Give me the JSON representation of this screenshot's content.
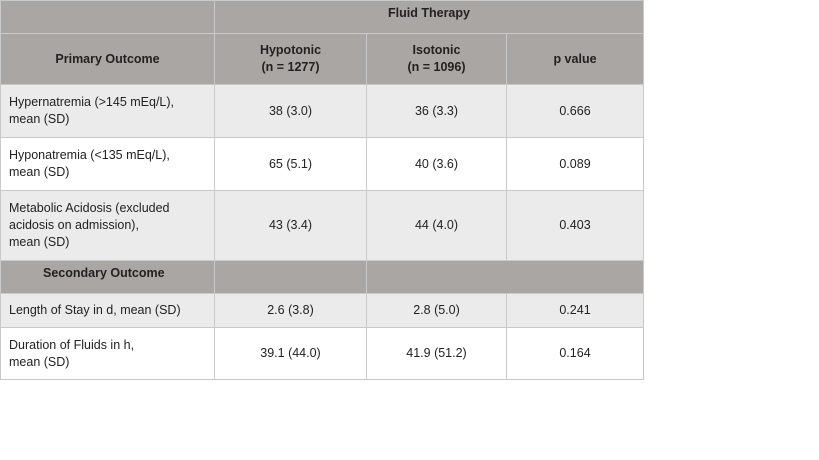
{
  "table": {
    "title": "Fluid Therapy",
    "header": [
      [
        "Primary Outcome"
      ],
      [
        "Hypotonic",
        "(n = 1277)"
      ],
      [
        "Isotonic",
        "(n = 1096)"
      ],
      [
        "p value"
      ]
    ],
    "rows": [
      {
        "label": [
          "Hypernatremia (>145 mEq/L),",
          "mean (SD)"
        ],
        "values": [
          "38 (3.0)",
          "36 (3.3)",
          "0.666"
        ]
      },
      {
        "label": [
          "Hyponatremia (<135 mEq/L),",
          "mean (SD)"
        ],
        "values": [
          "65 (5.1)",
          "40 (3.6)",
          "0.089"
        ]
      },
      {
        "label": [
          "Metabolic Acidosis (excluded",
          "acidosis on admission),",
          "mean (SD)"
        ],
        "values": [
          "43 (3.4)",
          "44 (4.0)",
          "0.403"
        ]
      }
    ],
    "section": "Secondary Outcome",
    "rows2": [
      {
        "label": [
          "Length of Stay in d, mean (SD)"
        ],
        "values": [
          "2.6 (3.8)",
          "2.8 (5.0)",
          "0.241"
        ]
      },
      {
        "label": [
          "Duration of Fluids in h,",
          "mean (SD)"
        ],
        "values": [
          "39.1 (44.0)",
          "41.9 (51.2)",
          "0.164"
        ]
      }
    ]
  }
}
